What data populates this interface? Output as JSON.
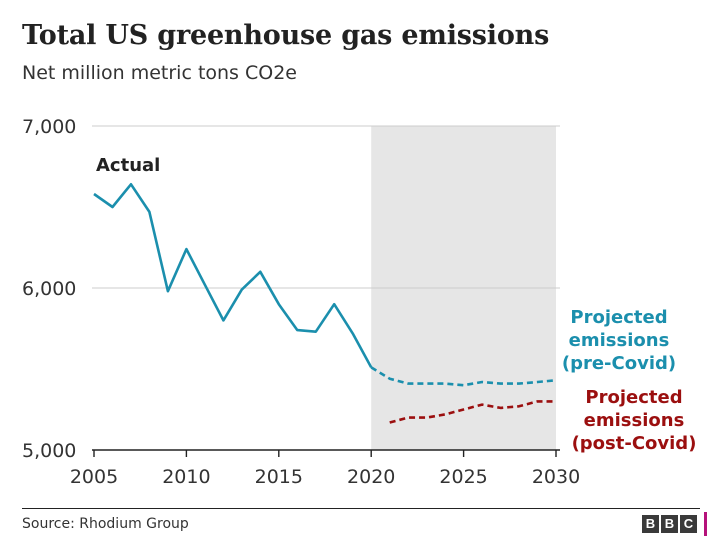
{
  "title": "Total US greenhouse gas emissions",
  "subtitle": "Net million metric tons CO2e",
  "source": "Source: Rhodium Group",
  "logo": [
    "B",
    "B",
    "C"
  ],
  "colors": {
    "actual": "#1b8fad",
    "pre_covid": "#1b8fad",
    "post_covid": "#9b0f0f",
    "projection_band": "#e6e6e6",
    "grid": "#cccccc"
  },
  "chart_data": {
    "type": "line",
    "xlim": [
      2005,
      2030
    ],
    "ylim": [
      5000,
      7000
    ],
    "x_ticks": [
      2005,
      2010,
      2015,
      2020,
      2025,
      2030
    ],
    "y_ticks": [
      5000,
      6000,
      7000
    ],
    "y_tick_labels": [
      "5,000",
      "6,000",
      "7,000"
    ],
    "shaded_region": [
      2020,
      2030
    ],
    "grid": true,
    "series": [
      {
        "key": "actual",
        "name": "Actual",
        "style": "solid",
        "x": [
          2005,
          2006,
          2007,
          2008,
          2009,
          2010,
          2011,
          2012,
          2013,
          2014,
          2015,
          2016,
          2017,
          2018,
          2019,
          2020
        ],
        "y": [
          6580,
          6500,
          6640,
          6470,
          5980,
          6240,
          6020,
          5800,
          5990,
          6100,
          5900,
          5740,
          5730,
          5900,
          5720,
          5510
        ]
      },
      {
        "key": "pre_covid",
        "name": "Projected emissions (pre-Covid)",
        "name_lines": [
          "Projected",
          "emissions",
          "(pre-Covid)"
        ],
        "style": "dashed",
        "x": [
          2020,
          2021,
          2022,
          2023,
          2024,
          2025,
          2026,
          2027,
          2028,
          2029,
          2030
        ],
        "y": [
          5510,
          5440,
          5410,
          5410,
          5410,
          5400,
          5420,
          5410,
          5410,
          5420,
          5430
        ]
      },
      {
        "key": "post_covid",
        "name": "Projected emissions (post-Covid)",
        "name_lines": [
          "Projected",
          "emissions",
          "(post-Covid)"
        ],
        "style": "dashed",
        "x": [
          2021,
          2022,
          2023,
          2024,
          2025,
          2026,
          2027,
          2028,
          2029,
          2030
        ],
        "y": [
          5170,
          5200,
          5200,
          5220,
          5250,
          5280,
          5260,
          5270,
          5300,
          5300
        ]
      }
    ]
  }
}
